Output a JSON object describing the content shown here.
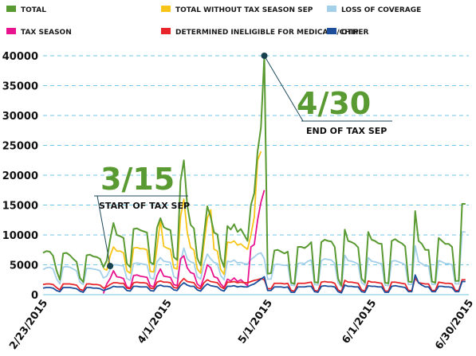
{
  "chart_data": {
    "type": "line",
    "xlabel": "",
    "ylabel": "",
    "ylim": [
      0,
      40000
    ],
    "yticks": [
      0,
      5000,
      10000,
      15000,
      20000,
      25000,
      30000,
      35000,
      40000
    ],
    "ytick_labels": [
      "0",
      "5000",
      "10000",
      "15000",
      "20000",
      "25000",
      "30000",
      "35000",
      "40000"
    ],
    "x_start": "2015-02-23",
    "x_end": "2015-06-30",
    "xticks": [
      {
        "label": "2/23/2015",
        "date": "2015-02-23"
      },
      {
        "label": "4/1/2015",
        "date": "2015-04-01"
      },
      {
        "label": "5/1/2015",
        "date": "2015-05-01"
      },
      {
        "label": "6/1/2015",
        "date": "2015-06-01"
      },
      {
        "label": "6/30/2015",
        "date": "2015-06-30"
      }
    ],
    "grid": true,
    "legend_position": "top",
    "series": [
      {
        "name": "TOTAL",
        "color": "#5a9a32",
        "width": 2,
        "values": [
          7000,
          7300,
          7200,
          6500,
          4100,
          2500,
          6900,
          7000,
          6600,
          6000,
          5500,
          2800,
          2100,
          6600,
          6700,
          6400,
          6300,
          6000,
          4600,
          5700,
          9200,
          12000,
          10000,
          9800,
          9500,
          5200,
          4600,
          11000,
          11100,
          10800,
          10600,
          10400,
          5400,
          5100,
          11200,
          12800,
          11300,
          11000,
          10800,
          6300,
          5800,
          19000,
          22500,
          15000,
          11700,
          11100,
          6100,
          4900,
          10000,
          14800,
          13000,
          10400,
          10100,
          6100,
          4600,
          11500,
          10900,
          11800,
          10500,
          11000,
          10000,
          9000,
          15000,
          17000,
          24000,
          28000,
          40000,
          3500,
          3600,
          7400,
          7500,
          7200,
          6900,
          7200,
          2000,
          1800,
          8000,
          8000,
          7800,
          8200,
          8800,
          2100,
          2000,
          8800,
          9200,
          9000,
          8900,
          8000,
          2700,
          1500,
          10900,
          9000,
          8800,
          8500,
          7900,
          2700,
          2000,
          10500,
          9200,
          9000,
          8600,
          8500,
          2000,
          1900,
          9000,
          9300,
          8900,
          8600,
          8100,
          2200,
          2100,
          14000,
          9000,
          8500,
          7500,
          7500,
          2200,
          2000,
          9500,
          9000,
          8500,
          8500,
          8000,
          2300,
          2300,
          15200,
          15200
        ]
      },
      {
        "name": "TOTAL WITHOUT TAX SEASON SEP",
        "color": "#f7c517",
        "width": 1.8,
        "values": [
          null,
          null,
          null,
          null,
          null,
          null,
          null,
          null,
          null,
          null,
          null,
          null,
          null,
          null,
          null,
          null,
          null,
          null,
          4400,
          4100,
          6500,
          8000,
          7300,
          7300,
          7000,
          4000,
          3600,
          7800,
          7900,
          7700,
          7700,
          7500,
          3900,
          3800,
          8000,
          12500,
          8100,
          7800,
          7600,
          4500,
          4300,
          13000,
          16000,
          10500,
          7900,
          7500,
          4300,
          3600,
          8500,
          12800,
          14200,
          7600,
          7300,
          4200,
          3400,
          8800,
          8700,
          9000,
          8300,
          8500,
          8000,
          7600,
          10000,
          13000,
          22500,
          24000,
          null,
          null,
          null,
          null,
          null,
          null,
          null,
          null,
          null,
          null,
          null,
          null,
          null,
          null,
          null,
          null,
          null,
          null,
          null,
          null,
          null,
          null,
          null,
          null,
          null,
          null,
          null,
          null,
          null,
          null,
          null,
          null,
          null,
          null,
          null,
          null,
          null,
          null,
          null,
          null,
          null,
          null,
          null,
          null,
          null,
          null,
          null,
          null,
          null,
          null,
          null,
          null,
          null,
          null,
          null,
          null,
          null,
          null,
          null,
          null,
          null
        ]
      },
      {
        "name": "LOSS OF COVERAGE",
        "color": "#a3cfe9",
        "width": 1.8,
        "values": [
          4200,
          4500,
          4600,
          4300,
          2700,
          1800,
          4600,
          4700,
          4600,
          4300,
          4000,
          2100,
          1700,
          4400,
          4400,
          4300,
          4200,
          4000,
          2800,
          3100,
          4200,
          5000,
          5000,
          4900,
          4800,
          2700,
          2400,
          5200,
          5300,
          5200,
          5100,
          5000,
          2800,
          2600,
          5500,
          6200,
          5600,
          5500,
          5400,
          3000,
          2700,
          5500,
          7800,
          6000,
          5500,
          5300,
          3000,
          2600,
          5200,
          6800,
          6000,
          5400,
          5200,
          3200,
          2500,
          5600,
          5500,
          5800,
          5300,
          5400,
          5200,
          5100,
          5900,
          6300,
          6800,
          7000,
          6000,
          2600,
          2600,
          5000,
          5100,
          5000,
          4900,
          5000,
          1600,
          1500,
          5200,
          5300,
          5200,
          5600,
          5800,
          1700,
          1600,
          5700,
          6000,
          5900,
          5800,
          5200,
          2000,
          1300,
          6600,
          5700,
          5600,
          5400,
          5100,
          2000,
          1600,
          6200,
          5600,
          5500,
          5300,
          5200,
          1600,
          1500,
          5600,
          5700,
          5500,
          5300,
          5000,
          1700,
          1700,
          8200,
          5500,
          5200,
          4800,
          4800,
          1700,
          1700,
          5700,
          5500,
          5200,
          5200,
          5000,
          1800,
          1800,
          10500,
          10500
        ]
      },
      {
        "name": "TAX SEASON",
        "color": "#e8138f",
        "width": 1.8,
        "values": [
          null,
          null,
          null,
          null,
          null,
          null,
          null,
          null,
          null,
          null,
          null,
          null,
          null,
          null,
          null,
          null,
          null,
          null,
          200,
          1800,
          2700,
          4000,
          3000,
          2900,
          2700,
          1300,
          1100,
          3200,
          3300,
          3100,
          3000,
          2900,
          1500,
          1300,
          3200,
          4300,
          3100,
          3000,
          2900,
          1700,
          1500,
          6000,
          6500,
          4500,
          3700,
          3500,
          1800,
          1300,
          2900,
          5000,
          4500,
          3000,
          2800,
          1800,
          1200,
          2600,
          2300,
          2800,
          2200,
          2500,
          2000,
          1500,
          8000,
          8400,
          12500,
          15500,
          17500,
          null,
          null,
          null,
          null,
          null,
          null,
          null,
          null,
          null,
          null,
          null,
          null,
          null,
          null,
          null,
          null,
          null,
          null,
          null,
          null,
          null,
          null,
          null,
          null,
          null,
          null,
          null,
          null,
          null,
          null,
          null,
          null,
          null,
          null,
          null,
          null,
          null,
          null,
          null,
          null,
          null,
          null,
          null,
          null,
          null,
          null,
          null,
          null,
          null,
          null,
          null,
          null,
          null,
          null,
          null,
          null,
          null,
          null,
          null,
          null
        ]
      },
      {
        "name": "DETERMINED INELIGIBLE FOR MEDICAID/CHIP",
        "color": "#e8252a",
        "width": 1.8,
        "values": [
          1700,
          1800,
          1800,
          1700,
          1200,
          800,
          1800,
          1800,
          1800,
          1700,
          1600,
          900,
          700,
          1800,
          1800,
          1700,
          1700,
          1600,
          1100,
          1300,
          1700,
          2000,
          2000,
          1900,
          1900,
          1100,
          1000,
          2000,
          2100,
          2000,
          2000,
          1900,
          1100,
          1000,
          2100,
          2300,
          2100,
          2100,
          2000,
          1200,
          1100,
          2100,
          2700,
          2200,
          2100,
          2000,
          1200,
          1000,
          2000,
          2500,
          2200,
          2100,
          2000,
          1300,
          1000,
          2100,
          2100,
          2200,
          2000,
          2100,
          2000,
          2000,
          2200,
          2400,
          2500,
          2700,
          2500,
          1000,
          1000,
          1900,
          1900,
          1900,
          1800,
          1900,
          700,
          600,
          1900,
          1900,
          1900,
          2000,
          2100,
          700,
          600,
          2100,
          2200,
          2100,
          2100,
          1900,
          800,
          500,
          2400,
          2100,
          2100,
          2000,
          1900,
          800,
          600,
          2300,
          2100,
          2100,
          2000,
          1900,
          600,
          600,
          2100,
          2100,
          2000,
          1900,
          1800,
          700,
          700,
          2800,
          2000,
          1900,
          1800,
          1800,
          700,
          700,
          2100,
          2000,
          1900,
          1900,
          1800,
          700,
          700,
          2500,
          2500
        ]
      },
      {
        "name": "OTHER",
        "color": "#1b4f9c",
        "width": 1.8,
        "values": [
          1100,
          1200,
          1200,
          1100,
          700,
          500,
          1200,
          1200,
          1200,
          1100,
          1000,
          600,
          400,
          1200,
          1200,
          1100,
          1100,
          1000,
          700,
          900,
          1100,
          1400,
          1300,
          1300,
          1300,
          700,
          600,
          1400,
          1400,
          1300,
          1300,
          1300,
          700,
          600,
          1400,
          1600,
          1400,
          1400,
          1300,
          800,
          700,
          1500,
          2000,
          1600,
          1400,
          1400,
          800,
          600,
          1300,
          1800,
          1500,
          1400,
          1300,
          800,
          600,
          1400,
          1400,
          1500,
          1300,
          1400,
          1300,
          1300,
          1600,
          1800,
          2200,
          2600,
          3000,
          700,
          700,
          1300,
          1300,
          1300,
          1200,
          1300,
          400,
          400,
          1300,
          1300,
          1300,
          1400,
          1400,
          500,
          400,
          1400,
          1500,
          1400,
          1400,
          1300,
          500,
          300,
          1600,
          1400,
          1400,
          1300,
          1300,
          500,
          400,
          1500,
          1400,
          1400,
          1300,
          1300,
          400,
          400,
          1400,
          1500,
          1400,
          1300,
          1200,
          500,
          500,
          3300,
          2000,
          1600,
          1300,
          1300,
          500,
          500,
          1400,
          1400,
          1300,
          1300,
          1200,
          500,
          500,
          2200,
          2200
        ]
      }
    ],
    "annotations": [
      {
        "big": "3/15",
        "label": "START OF TAX SEP",
        "date": "2015-03-15",
        "value": 4800
      },
      {
        "big": "4/30",
        "label": "END OF TAX SEP",
        "date": "2015-04-30",
        "value": 40000
      }
    ]
  }
}
